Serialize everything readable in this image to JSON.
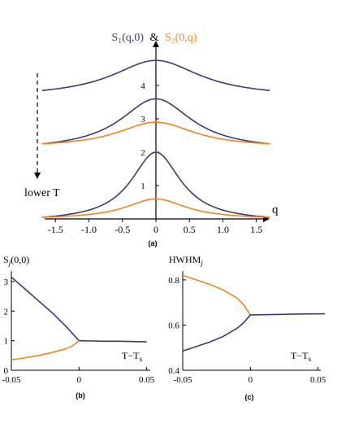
{
  "colors": {
    "S1": "#3b3a78",
    "S2": "#f08522",
    "axis": "#000000"
  },
  "chart_data": [
    {
      "type": "line",
      "panel_label": "(a)",
      "title": "S₁(q,0) & S₂(0,q)",
      "title_s1": "S₁(q,0)",
      "title_amp": "&",
      "title_s2": "S₂(0,q)",
      "xlabel": "q",
      "x_ticks": [
        "-1.5",
        "-1.0",
        "-0.5",
        "0",
        "0.5",
        "1.0",
        "1.5"
      ],
      "y_ticks": [
        "1",
        "2",
        "3",
        "4"
      ],
      "xlim": [
        -1.7,
        1.7
      ],
      "ylim": [
        0,
        5
      ],
      "annotation": "lower T",
      "series": [
        {
          "color_key": "S1",
          "peak_q0": 4.75,
          "edge_q1_7": 3.85,
          "width": 0.8
        },
        {
          "color_key": "S1",
          "peak_q0": 3.6,
          "edge_q1_7": 2.25,
          "width": 0.65
        },
        {
          "color_key": "S2",
          "peak_q0": 2.9,
          "edge_q1_7": 2.25,
          "width": 0.7
        },
        {
          "color_key": "S1",
          "peak_q0": 2.0,
          "edge_q1_7": 0.05,
          "width": 0.45
        },
        {
          "color_key": "S2",
          "peak_q0": 0.6,
          "edge_q1_7": 0.05,
          "width": 0.55
        }
      ]
    },
    {
      "type": "line",
      "panel_label": "(b)",
      "ylabel": "S",
      "ylabel_sub": "j",
      "ylabel_args": "(0,0)",
      "xlabel": "T−T",
      "xlabel_sub": "s",
      "x_ticks": [
        "-0.05",
        "0",
        "0.05"
      ],
      "y_ticks": [
        "0",
        "1",
        "2",
        "3"
      ],
      "xlim": [
        -0.05,
        0.055
      ],
      "ylim": [
        0,
        3.3
      ],
      "series": [
        {
          "color_key": "S1",
          "x": [
            -0.05,
            -0.04,
            -0.03,
            -0.02,
            -0.01,
            -0.005,
            0,
            0.01,
            0.02,
            0.03,
            0.04,
            0.05
          ],
          "y": [
            3.15,
            2.75,
            2.35,
            1.95,
            1.5,
            1.25,
            1.0,
            0.99,
            0.98,
            0.98,
            0.97,
            0.96
          ]
        },
        {
          "color_key": "S2",
          "x": [
            -0.05,
            -0.04,
            -0.03,
            -0.02,
            -0.01,
            -0.005,
            0
          ],
          "y": [
            0.35,
            0.42,
            0.5,
            0.6,
            0.72,
            0.82,
            1.0
          ]
        }
      ]
    },
    {
      "type": "line",
      "panel_label": "(c)",
      "ylabel": "HWHM",
      "ylabel_sub": "j",
      "xlabel": "T−T",
      "xlabel_sub": "s",
      "x_ticks": [
        "-0.05",
        "0",
        "0.05"
      ],
      "y_ticks": [
        "0.4",
        "0.6",
        "0.8"
      ],
      "xlim": [
        -0.05,
        0.055
      ],
      "ylim": [
        0.4,
        0.85
      ],
      "series": [
        {
          "color_key": "S2",
          "x": [
            -0.05,
            -0.04,
            -0.03,
            -0.02,
            -0.01,
            -0.005,
            0
          ],
          "y": [
            0.82,
            0.8,
            0.78,
            0.755,
            0.72,
            0.69,
            0.645
          ]
        },
        {
          "color_key": "S1",
          "x": [
            -0.05,
            -0.04,
            -0.03,
            -0.02,
            -0.01,
            -0.005,
            0,
            0.01,
            0.02,
            0.03,
            0.04,
            0.055
          ],
          "y": [
            0.485,
            0.505,
            0.525,
            0.55,
            0.585,
            0.61,
            0.645,
            0.646,
            0.647,
            0.648,
            0.649,
            0.65
          ]
        }
      ]
    }
  ]
}
